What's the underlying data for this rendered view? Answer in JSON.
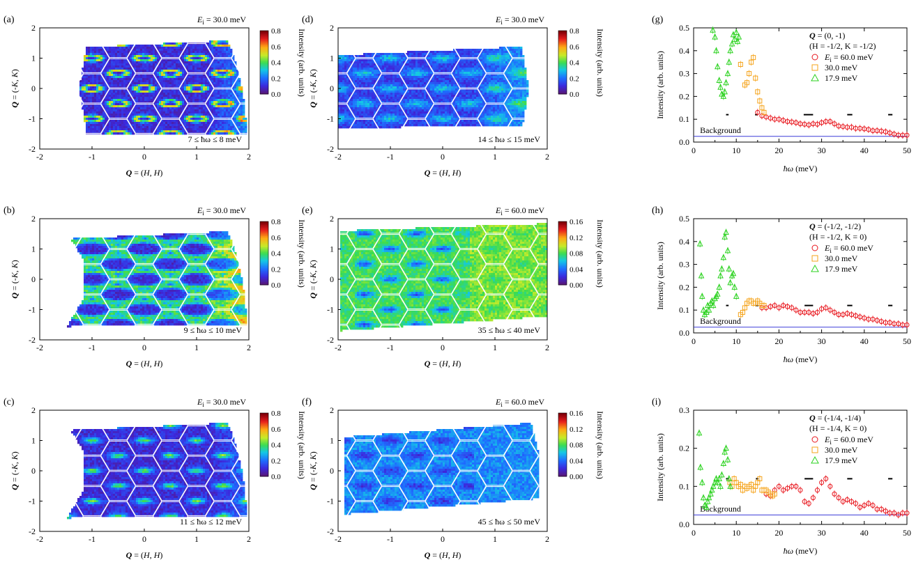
{
  "maps": [
    {
      "id": "a",
      "label": "(a)",
      "ei": "30.0 meV",
      "range": "7 ≤ ħω ≤ 8 meV",
      "scale": "0.8",
      "cmax": 0.8,
      "cbar_ticks": [
        "0.0",
        "0.2",
        "0.4",
        "0.6",
        "0.8"
      ],
      "xlabel": "Q = (H, H)",
      "ylabel": "Q = (-K, K)",
      "xticks": [
        "-2",
        "-1",
        "0",
        "1",
        "2"
      ],
      "yticks": [
        "-2",
        "-1",
        "0",
        "1",
        "2"
      ],
      "pattern": "rings"
    },
    {
      "id": "b",
      "label": "(b)",
      "ei": "30.0 meV",
      "range": "9 ≤ ħω ≤ 10 meV",
      "cmax": 0.8,
      "cbar_ticks": [
        "0.0",
        "0.2",
        "0.4",
        "0.6",
        "0.8"
      ],
      "xlabel": "Q = (H, H)",
      "ylabel": "Q = (-K, K)",
      "xticks": [
        "-2",
        "-1",
        "0",
        "1",
        "2"
      ],
      "yticks": [
        "-2",
        "-1",
        "0",
        "1",
        "2"
      ],
      "pattern": "edges"
    },
    {
      "id": "c",
      "label": "(c)",
      "ei": "30.0 meV",
      "range": "11 ≤ ħω ≤ 12 meV",
      "cmax": 0.8,
      "cbar_ticks": [
        "0.0",
        "0.2",
        "0.4",
        "0.6",
        "0.8"
      ],
      "xlabel": "Q = (H, H)",
      "ylabel": "Q = (-K, K)",
      "xticks": [
        "-2",
        "-1",
        "0",
        "1",
        "2"
      ],
      "yticks": [
        "-2",
        "-1",
        "0",
        "1",
        "2"
      ],
      "pattern": "spots"
    },
    {
      "id": "d",
      "label": "(d)",
      "ei": "30.0 meV",
      "range": "14 ≤ ħω ≤ 15 meV",
      "cmax": 0.8,
      "cbar_ticks": [
        "0.0",
        "0.2",
        "0.4",
        "0.6",
        "0.8"
      ],
      "xlabel": "Q = (H, H)",
      "ylabel": "Q = (-K, K)",
      "xticks": [
        "-2",
        "-1",
        "0",
        "1",
        "2"
      ],
      "yticks": [
        "-2",
        "-1",
        "0",
        "1",
        "2"
      ],
      "pattern": "diffuse"
    },
    {
      "id": "e",
      "label": "(e)",
      "ei": "60.0 meV",
      "range": "35 ≤ ħω ≤ 40 meV",
      "cmax": 0.16,
      "cbar_ticks": [
        "0.00",
        "0.04",
        "0.08",
        "0.12",
        "0.16"
      ],
      "xlabel": "Q = (H, H)",
      "ylabel": "Q = (-K, K)",
      "xticks": [
        "-2",
        "-1",
        "0",
        "1",
        "2"
      ],
      "yticks": [
        "-2",
        "-1",
        "0",
        "1",
        "2"
      ],
      "pattern": "highbg"
    },
    {
      "id": "f",
      "label": "(f)",
      "ei": "60.0 meV",
      "range": "45 ≤ ħω ≤ 50 meV",
      "cmax": 0.16,
      "cbar_ticks": [
        "0.00",
        "0.04",
        "0.08",
        "0.12",
        "0.16"
      ],
      "xlabel": "Q = (H, H)",
      "ylabel": "Q = (-K, K)",
      "xticks": [
        "-2",
        "-1",
        "0",
        "1",
        "2"
      ],
      "yticks": [
        "-2",
        "-1",
        "0",
        "1",
        "2"
      ],
      "pattern": "lowbg"
    }
  ],
  "cbar_label": "Intensity (arb. units)",
  "chart_data": [
    {
      "id": "g",
      "label": "(g)",
      "type": "scatter",
      "q_label": "Q = (0, -1)",
      "hk_label": "(H = -1/2, K = -1/2)",
      "xlabel": "ħω (meV)",
      "ylabel": "Intensity (arb. units)",
      "xlim": [
        0,
        50
      ],
      "ylim": [
        0,
        0.5
      ],
      "xticks": [
        "0",
        "10",
        "20",
        "30",
        "40",
        "50"
      ],
      "yticks": [
        "0.0",
        "0.1",
        "0.2",
        "0.3",
        "0.4",
        "0.5"
      ],
      "background": {
        "label": "Background",
        "value": 0.025
      },
      "series": [
        {
          "name": "Ei = 60.0 meV",
          "legend": "60.0 meV",
          "marker": "circle",
          "color": "#e8141b",
          "x": [
            15,
            16,
            17,
            18,
            19,
            20,
            21,
            22,
            23,
            24,
            25,
            26,
            27,
            28,
            29,
            30,
            31,
            32,
            33,
            34,
            35,
            36,
            37,
            38,
            39,
            40,
            41,
            42,
            43,
            44,
            45,
            46,
            47,
            48,
            49,
            50
          ],
          "y": [
            0.13,
            0.115,
            0.11,
            0.105,
            0.1,
            0.1,
            0.095,
            0.09,
            0.088,
            0.085,
            0.08,
            0.078,
            0.075,
            0.08,
            0.078,
            0.085,
            0.09,
            0.09,
            0.08,
            0.07,
            0.068,
            0.065,
            0.065,
            0.06,
            0.06,
            0.058,
            0.055,
            0.05,
            0.05,
            0.048,
            0.045,
            0.04,
            0.035,
            0.03,
            0.03,
            0.03
          ]
        },
        {
          "name": "30.0 meV",
          "legend": "30.0 meV",
          "marker": "square",
          "color": "#f5a31a",
          "x": [
            11,
            12,
            12.5,
            13,
            13.5,
            14,
            14.5,
            15,
            15.5,
            16,
            16.5
          ],
          "y": [
            0.34,
            0.25,
            0.26,
            0.3,
            0.35,
            0.37,
            0.28,
            0.22,
            0.18,
            0.15,
            0.13
          ]
        },
        {
          "name": "17.9 meV",
          "legend": "17.9 meV",
          "marker": "triangle",
          "color": "#2bd21f",
          "x": [
            4.5,
            5,
            5.3,
            5.6,
            6,
            6.3,
            6.6,
            7,
            7.3,
            7.6,
            8,
            8.3,
            8.6,
            9,
            9.3,
            9.6,
            10,
            10.3,
            10.6
          ],
          "y": [
            0.49,
            0.46,
            0.4,
            0.33,
            0.27,
            0.24,
            0.21,
            0.2,
            0.22,
            0.26,
            0.3,
            0.35,
            0.4,
            0.43,
            0.47,
            0.45,
            0.48,
            0.44,
            0.46
          ]
        }
      ],
      "bars_y": 0.12,
      "bars": [
        [
          7.6,
          8.2
        ],
        [
          14.4,
          15.0
        ],
        [
          25.8,
          28.0
        ],
        [
          36.0,
          37.2
        ],
        [
          45.6,
          46.6
        ]
      ]
    },
    {
      "id": "h",
      "label": "(h)",
      "type": "scatter",
      "q_label": "Q = (-1/2, -1/2)",
      "hk_label": "(H = -1/2, K = 0)",
      "xlabel": "ħω (meV)",
      "ylabel": "Intensity (arb. units)",
      "xlim": [
        0,
        50
      ],
      "ylim": [
        0,
        0.5
      ],
      "xticks": [
        "0",
        "10",
        "20",
        "30",
        "40",
        "50"
      ],
      "yticks": [
        "0.0",
        "0.1",
        "0.2",
        "0.3",
        "0.4",
        "0.5"
      ],
      "background": {
        "label": "Background",
        "value": 0.025
      },
      "series": [
        {
          "name": "Ei = 60.0 meV",
          "legend": "60.0 meV",
          "marker": "circle",
          "color": "#e8141b",
          "x": [
            16,
            17,
            18,
            19,
            20,
            21,
            22,
            23,
            24,
            25,
            26,
            27,
            28,
            29,
            30,
            31,
            32,
            33,
            34,
            35,
            36,
            37,
            38,
            39,
            40,
            41,
            42,
            43,
            44,
            45,
            46,
            47,
            48,
            49,
            50
          ],
          "y": [
            0.11,
            0.11,
            0.115,
            0.12,
            0.11,
            0.12,
            0.115,
            0.11,
            0.1,
            0.09,
            0.09,
            0.09,
            0.085,
            0.09,
            0.105,
            0.11,
            0.1,
            0.09,
            0.08,
            0.08,
            0.085,
            0.08,
            0.075,
            0.07,
            0.065,
            0.06,
            0.06,
            0.055,
            0.05,
            0.045,
            0.045,
            0.04,
            0.04,
            0.035,
            0.035
          ]
        },
        {
          "name": "30.0 meV",
          "legend": "30.0 meV",
          "marker": "square",
          "color": "#f5a31a",
          "x": [
            11,
            11.5,
            12,
            12.5,
            13,
            13.5,
            14,
            14.5,
            15,
            15.5,
            16,
            16.5
          ],
          "y": [
            0.08,
            0.09,
            0.11,
            0.13,
            0.14,
            0.14,
            0.13,
            0.13,
            0.14,
            0.13,
            0.12,
            0.12
          ]
        },
        {
          "name": "17.9 meV",
          "legend": "17.9 meV",
          "marker": "triangle",
          "color": "#2bd21f",
          "x": [
            1.5,
            1.8,
            2,
            2.3,
            2.6,
            3,
            3.3,
            3.6,
            4,
            4.3,
            4.6,
            5,
            5.3,
            5.6,
            6,
            6.3,
            6.6,
            7,
            7.3,
            7.6,
            8,
            8.3,
            8.6,
            9,
            9.3,
            9.6,
            10
          ],
          "y": [
            0.39,
            0.25,
            0.16,
            0.1,
            0.08,
            0.09,
            0.12,
            0.1,
            0.13,
            0.14,
            0.12,
            0.15,
            0.16,
            0.17,
            0.2,
            0.25,
            0.28,
            0.33,
            0.42,
            0.44,
            0.36,
            0.28,
            0.22,
            0.25,
            0.26,
            0.2,
            0.16
          ]
        }
      ],
      "bars_y": 0.12,
      "bars": [
        [
          7.6,
          8.2
        ],
        [
          14.6,
          15.2
        ],
        [
          26.0,
          28.0
        ],
        [
          36.0,
          37.2
        ],
        [
          45.6,
          46.6
        ]
      ]
    },
    {
      "id": "i",
      "label": "(i)",
      "type": "scatter",
      "q_label": "Q = (-1/4, -1/4)",
      "hk_label": "(H = -1/4, K = 0)",
      "xlabel": "ħω (meV)",
      "ylabel": "Intensity (arb. units)",
      "xlim": [
        0,
        50
      ],
      "ylim": [
        0,
        0.3
      ],
      "xticks": [
        "0",
        "10",
        "20",
        "30",
        "40",
        "50"
      ],
      "yticks": [
        "0.0",
        "0.1",
        "0.2",
        "0.3"
      ],
      "background": {
        "label": "Background",
        "value": 0.025
      },
      "series": [
        {
          "name": "Ei = 60.0 meV",
          "legend": "60.0 meV",
          "marker": "circle",
          "color": "#e8141b",
          "x": [
            17,
            18,
            19,
            20,
            21,
            22,
            23,
            24,
            25,
            26,
            27,
            28,
            29,
            30,
            31,
            32,
            33,
            34,
            35,
            36,
            37,
            38,
            39,
            40,
            41,
            42,
            43,
            44,
            45,
            46,
            47,
            48,
            49,
            50
          ],
          "y": [
            0.08,
            0.075,
            0.09,
            0.1,
            0.09,
            0.095,
            0.1,
            0.1,
            0.09,
            0.06,
            0.055,
            0.07,
            0.09,
            0.11,
            0.12,
            0.1,
            0.08,
            0.07,
            0.06,
            0.065,
            0.06,
            0.055,
            0.045,
            0.05,
            0.055,
            0.05,
            0.04,
            0.04,
            0.035,
            0.03,
            0.03,
            0.025,
            0.03,
            0.03
          ]
        },
        {
          "name": "30.0 meV",
          "legend": "30.0 meV",
          "marker": "square",
          "color": "#f5a31a",
          "x": [
            8.5,
            9,
            9.5,
            10,
            10.5,
            11,
            11.5,
            12,
            12.5,
            13,
            13.5,
            14,
            14.5,
            15,
            15.5,
            16,
            16.5,
            17,
            17.5,
            18,
            18.5,
            19
          ],
          "y": [
            0.11,
            0.1,
            0.12,
            0.11,
            0.1,
            0.105,
            0.09,
            0.1,
            0.095,
            0.1,
            0.105,
            0.09,
            0.1,
            0.11,
            0.12,
            0.09,
            0.09,
            0.09,
            0.085,
            0.08,
            0.075,
            0.08
          ]
        },
        {
          "name": "17.9 meV",
          "legend": "17.9 meV",
          "marker": "triangle",
          "color": "#2bd21f",
          "x": [
            1.3,
            1.6,
            2,
            2.3,
            2.6,
            3,
            3.3,
            3.6,
            4,
            4.3,
            4.6,
            5,
            5.3,
            5.6,
            6,
            6.3,
            6.6,
            7,
            7.3,
            7.6,
            8,
            8.3,
            8.6
          ],
          "y": [
            0.24,
            0.15,
            0.11,
            0.07,
            0.05,
            0.045,
            0.06,
            0.07,
            0.08,
            0.09,
            0.1,
            0.11,
            0.12,
            0.11,
            0.12,
            0.1,
            0.13,
            0.16,
            0.19,
            0.2,
            0.17,
            0.12,
            0.1
          ]
        }
      ],
      "bars_y": 0.12,
      "bars": [
        [
          7.6,
          8.2
        ],
        [
          14.6,
          15.2
        ],
        [
          26.0,
          28.0
        ],
        [
          36.0,
          37.2
        ],
        [
          45.6,
          46.6
        ]
      ]
    }
  ]
}
